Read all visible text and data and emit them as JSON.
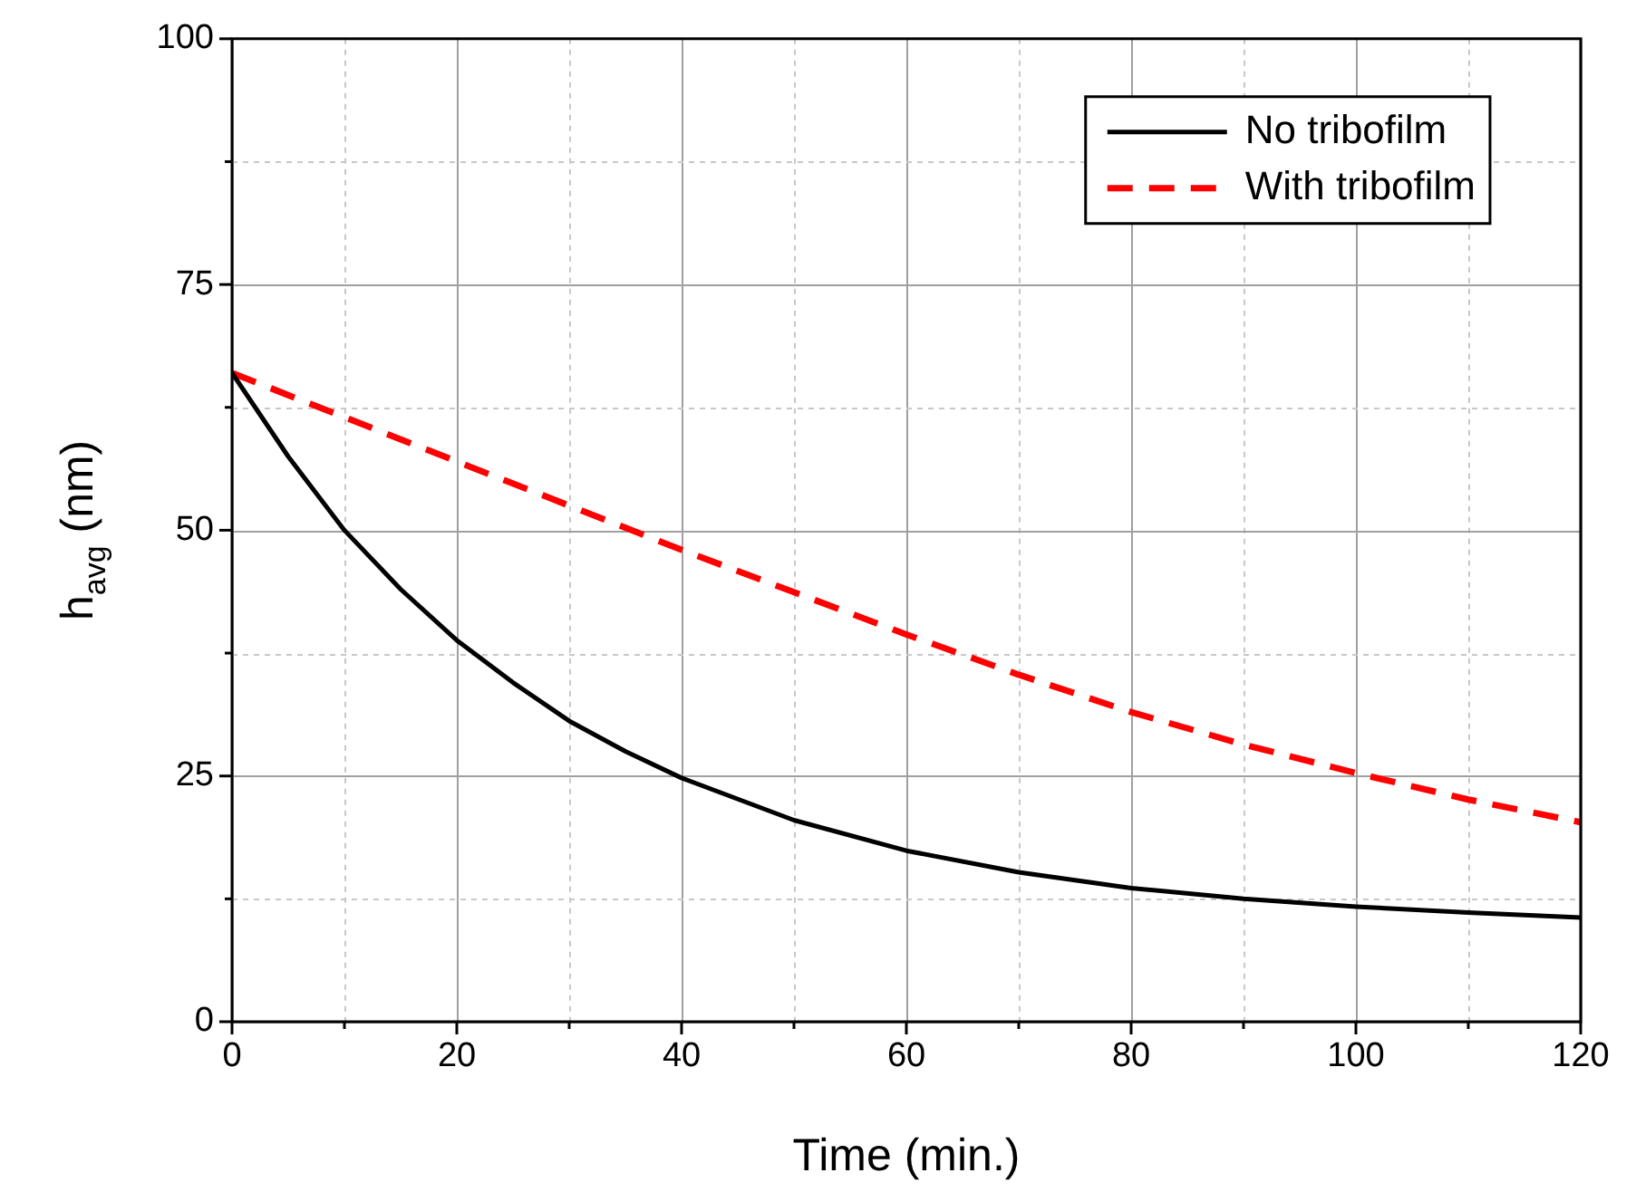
{
  "chart_data": {
    "type": "line",
    "xlabel": "Time (min.)",
    "ylabel": "h$_{avg}$ (nm)",
    "xlim": [
      0,
      120
    ],
    "ylim": [
      0,
      100
    ],
    "xticks": [
      0,
      {
        "value": 10,
        "label": null
      },
      20,
      {
        "value": 30,
        "label": null
      },
      40,
      {
        "value": 50,
        "label": null
      },
      60,
      {
        "value": 70,
        "label": null
      },
      80,
      {
        "value": 90,
        "label": null
      },
      100,
      {
        "value": 110,
        "label": null
      },
      120
    ],
    "yticks": [
      0,
      {
        "value": 12.5,
        "label": null
      },
      25,
      {
        "value": 37.5,
        "label": null
      },
      50,
      {
        "value": 62.5,
        "label": null
      },
      75,
      {
        "value": 87.5,
        "label": null
      },
      100
    ],
    "grid": true,
    "legend": "top right",
    "marker": "none",
    "series": [
      {
        "name": "No tribofilm",
        "color": "#000000",
        "line_style": "solid",
        "x": [
          0,
          5,
          10,
          15,
          20,
          25,
          30,
          35,
          40,
          50,
          60,
          70,
          80,
          90,
          100,
          110,
          120
        ],
        "values": [
          66,
          57.5,
          50,
          44,
          38.8,
          34.5,
          30.6,
          27.5,
          24.8,
          20.5,
          17.4,
          15.2,
          13.6,
          12.5,
          11.7,
          11.1,
          10.6
        ]
      },
      {
        "name": "With tribofilm",
        "color": "#ff0000",
        "line_style": "dashed",
        "x": [
          0,
          10,
          20,
          30,
          40,
          50,
          60,
          70,
          80,
          90,
          100,
          110,
          120
        ],
        "values": [
          66,
          61.5,
          57,
          52.5,
          48,
          43.7,
          39.4,
          35.3,
          31.5,
          28.2,
          25.3,
          22.6,
          20.3
        ]
      }
    ]
  }
}
